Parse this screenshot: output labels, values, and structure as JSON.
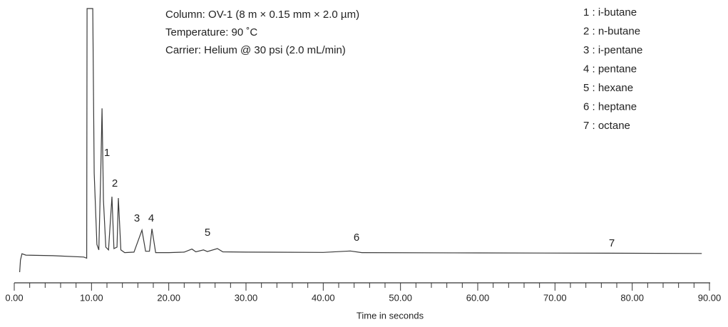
{
  "chart_data": {
    "type": "line",
    "conditions": [
      "Column: OV-1 (8 m × 0.15 mm × 2.0 µm)",
      "Temperature: 90 ˚C",
      "Carrier: Helium @ 30 psi (2.0 mL/min)"
    ],
    "legend_items": [
      "1 : i-butane",
      "2 : n-butane",
      "3 : i-pentane",
      "4 : pentane",
      "5 : hexane",
      "6 : heptane",
      "7 : octane"
    ],
    "peak_labels": [
      "1",
      "2",
      "3",
      "4",
      "5",
      "6",
      "7"
    ],
    "x_label": "Time in seconds",
    "color": "#3a3a3a",
    "x": [
      0.7,
      0.8,
      1.0,
      1.5,
      5,
      9.0,
      9.38,
      9.42,
      10.16,
      10.35,
      10.7,
      10.95,
      11.2,
      11.36,
      11.55,
      11.85,
      12.2,
      12.65,
      12.9,
      13.3,
      13.48,
      13.8,
      14.3,
      15.5,
      16.53,
      17.0,
      17.5,
      17.82,
      18.3,
      20,
      22,
      23,
      23.5,
      24.5,
      25,
      26.3,
      27,
      30,
      40,
      43.5,
      45,
      60,
      77,
      89
    ],
    "values": [
      3.9,
      8.3,
      10.6,
      10.1,
      9.9,
      9.4,
      9.0,
      100,
      100,
      40,
      14,
      12,
      40,
      63.6,
      30,
      13,
      12,
      31.4,
      12.5,
      13,
      30.9,
      12,
      11,
      11.2,
      19.2,
      11.5,
      11.5,
      19.7,
      11,
      11,
      11.2,
      12.3,
      11.3,
      12.0,
      11.4,
      12.5,
      11.3,
      11.2,
      11.1,
      11.6,
      11.0,
      10.9,
      10.8,
      10.7
    ],
    "xlim": [
      0,
      90
    ],
    "ylim": [
      0,
      100
    ],
    "xticks": [
      {
        "value": 0,
        "label": "0.00"
      },
      {
        "value": 10,
        "label": "10.00"
      },
      {
        "value": 20,
        "label": "20.00"
      },
      {
        "value": 30,
        "label": "30.00"
      },
      {
        "value": 40,
        "label": "40.00"
      },
      {
        "value": 50,
        "label": "50.00"
      },
      {
        "value": 60,
        "label": "60.00"
      },
      {
        "value": 70,
        "label": "70.00"
      },
      {
        "value": 80,
        "label": "80.00"
      },
      {
        "value": 90,
        "label": "90.00"
      }
    ],
    "xminorticks": [
      2,
      4,
      6,
      8,
      12,
      14,
      16,
      18,
      22,
      24,
      26,
      28,
      32,
      34,
      36,
      38,
      42,
      44,
      46,
      48,
      52,
      54,
      56,
      58,
      62,
      64,
      66,
      68,
      72,
      74,
      76,
      78,
      82,
      84,
      86,
      88
    ]
  }
}
